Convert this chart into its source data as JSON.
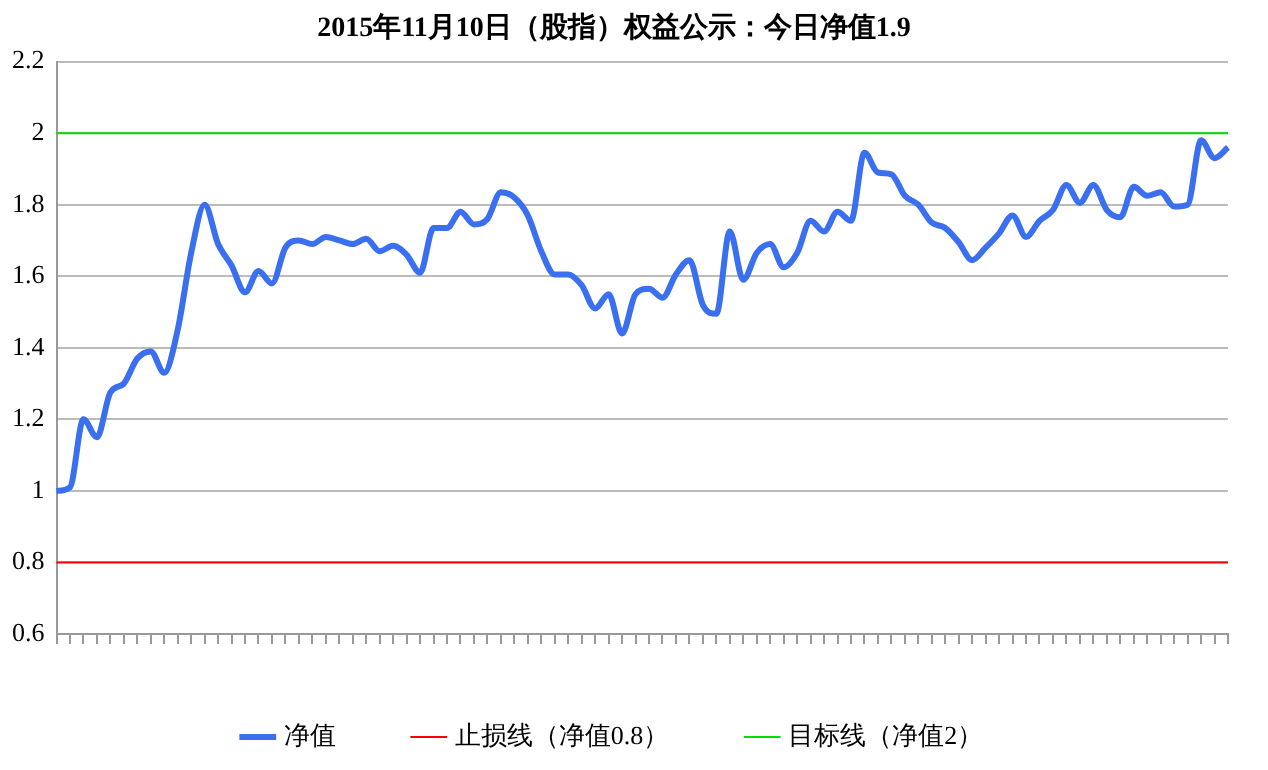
{
  "chart_data": {
    "type": "line",
    "title": "2015年11月10日（股指）权益公示：今日净值1.9",
    "categories": [
      null,
      null,
      null,
      null,
      null,
      null,
      null,
      null,
      null,
      null,
      null,
      null,
      null,
      null,
      null,
      null,
      null,
      null,
      null,
      null,
      null,
      null,
      null,
      null,
      null,
      null,
      null,
      null,
      null,
      null,
      null,
      null,
      null,
      null,
      null,
      null,
      null,
      null,
      null,
      null,
      null,
      null,
      null,
      null,
      null,
      null,
      null,
      null,
      null,
      null,
      null,
      null,
      null,
      null,
      null,
      null,
      null,
      null,
      null,
      null,
      null,
      null,
      null,
      null,
      null,
      null,
      null,
      null,
      null,
      null,
      null,
      null,
      null,
      null,
      null,
      null,
      null,
      null,
      null,
      null,
      null,
      null,
      null,
      null,
      null,
      null,
      null,
      null
    ],
    "series": [
      {
        "name": "净值",
        "color": "#3a6ff0",
        "values": [
          1.0,
          1.01,
          1.2,
          1.15,
          1.275,
          1.3,
          1.37,
          1.39,
          1.33,
          1.45,
          1.665,
          1.8,
          1.69,
          1.63,
          1.555,
          1.615,
          1.58,
          1.68,
          1.7,
          1.69,
          1.71,
          1.7,
          1.69,
          1.705,
          1.67,
          1.685,
          1.66,
          1.61,
          1.735,
          1.735,
          1.78,
          1.745,
          1.76,
          1.835,
          1.82,
          1.77,
          1.67,
          1.605,
          1.605,
          1.575,
          1.51,
          1.55,
          1.44,
          1.55,
          1.565,
          1.54,
          1.605,
          1.645,
          1.52,
          1.495,
          1.725,
          1.59,
          1.665,
          1.69,
          1.625,
          1.665,
          1.755,
          1.725,
          1.78,
          1.755,
          1.945,
          1.89,
          1.885,
          1.825,
          1.8,
          1.75,
          1.735,
          1.695,
          1.645,
          1.68,
          1.72,
          1.77,
          1.71,
          1.755,
          1.785,
          1.855,
          1.805,
          1.855,
          1.785,
          1.765,
          1.85,
          1.825,
          1.835,
          1.795,
          1.8,
          1.98,
          1.93,
          1.96
        ]
      },
      {
        "name": "止损线（净值0.8）",
        "color": "#ff0000",
        "values": [
          0.8,
          0.8,
          0.8,
          0.8,
          0.8,
          0.8,
          0.8,
          0.8,
          0.8,
          0.8,
          0.8,
          0.8,
          0.8,
          0.8,
          0.8,
          0.8,
          0.8,
          0.8,
          0.8,
          0.8,
          0.8,
          0.8,
          0.8,
          0.8,
          0.8,
          0.8,
          0.8,
          0.8,
          0.8,
          0.8,
          0.8,
          0.8,
          0.8,
          0.8,
          0.8,
          0.8,
          0.8,
          0.8,
          0.8,
          0.8,
          0.8,
          0.8,
          0.8,
          0.8,
          0.8,
          0.8,
          0.8,
          0.8,
          0.8,
          0.8,
          0.8,
          0.8,
          0.8,
          0.8,
          0.8,
          0.8,
          0.8,
          0.8,
          0.8,
          0.8,
          0.8,
          0.8,
          0.8,
          0.8,
          0.8,
          0.8,
          0.8,
          0.8,
          0.8,
          0.8,
          0.8,
          0.8,
          0.8,
          0.8,
          0.8,
          0.8,
          0.8,
          0.8,
          0.8,
          0.8,
          0.8,
          0.8,
          0.8,
          0.8,
          0.8,
          0.8,
          0.8,
          0.8
        ]
      },
      {
        "name": "目标线（净值2）",
        "color": "#00dd00",
        "values": [
          2,
          2,
          2,
          2,
          2,
          2,
          2,
          2,
          2,
          2,
          2,
          2,
          2,
          2,
          2,
          2,
          2,
          2,
          2,
          2,
          2,
          2,
          2,
          2,
          2,
          2,
          2,
          2,
          2,
          2,
          2,
          2,
          2,
          2,
          2,
          2,
          2,
          2,
          2,
          2,
          2,
          2,
          2,
          2,
          2,
          2,
          2,
          2,
          2,
          2,
          2,
          2,
          2,
          2,
          2,
          2,
          2,
          2,
          2,
          2,
          2,
          2,
          2,
          2,
          2,
          2,
          2,
          2,
          2,
          2,
          2,
          2,
          2,
          2,
          2,
          2,
          2,
          2,
          2,
          2,
          2,
          2,
          2,
          2,
          2,
          2,
          2,
          2
        ]
      }
    ],
    "ylim": [
      0.6,
      2.2
    ],
    "yticks": [
      {
        "value": 0.6,
        "label": "0.6"
      },
      {
        "value": 0.8,
        "label": "0.8"
      },
      {
        "value": 1,
        "label": "1"
      },
      {
        "value": 1.2,
        "label": "1.2"
      },
      {
        "value": 1.4,
        "label": "1.4"
      },
      {
        "value": 1.6,
        "label": "1.6"
      },
      {
        "value": 1.8,
        "label": "1.8"
      },
      {
        "value": 2,
        "label": "2"
      },
      {
        "value": 2.2,
        "label": "2.2"
      }
    ],
    "grid": "y",
    "legend": "bottom",
    "marker": "none",
    "line_style": "solid",
    "tick_labels": "y"
  }
}
